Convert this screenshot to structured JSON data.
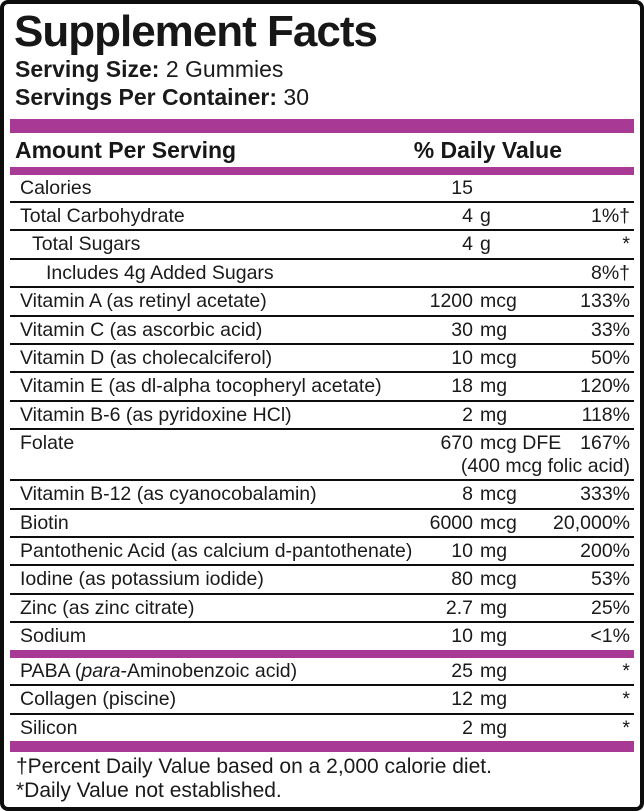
{
  "title": "Supplement Facts",
  "serving_size": {
    "label": "Serving Size:",
    "value": "2 Gummies"
  },
  "servings_per_container": {
    "label": "Servings Per Container:",
    "value": "30"
  },
  "columns": {
    "amount": "Amount Per Serving",
    "daily_value": "% Daily Value"
  },
  "colors": {
    "accent_bar": "#A83994",
    "border": "#0D0D0D",
    "text": "#1A1A1A"
  },
  "sections": [
    {
      "rows": [
        {
          "name": "Calories",
          "amount": "15",
          "unit": "",
          "dv": "",
          "indent": 0
        },
        {
          "name": "Total Carbohydrate",
          "amount": "4",
          "unit": "g",
          "dv": "1%†",
          "indent": 0
        },
        {
          "name": "Total Sugars",
          "amount": "4",
          "unit": "g",
          "dv": "*",
          "indent": 1
        },
        {
          "name": "Includes 4g Added Sugars",
          "amount": "",
          "unit": "",
          "dv": "8%†",
          "indent": 2
        },
        {
          "name": "Vitamin A (as retinyl acetate)",
          "amount": "1200",
          "unit": "mcg",
          "dv": "133%",
          "indent": 0
        },
        {
          "name": "Vitamin C (as ascorbic acid)",
          "amount": "30",
          "unit": "mg",
          "dv": "33%",
          "indent": 0
        },
        {
          "name": "Vitamin D (as cholecalciferol)",
          "amount": "10",
          "unit": "mcg",
          "dv": "50%",
          "indent": 0
        },
        {
          "name": "Vitamin E (as dl-alpha tocopheryl acetate)",
          "amount": "18",
          "unit": "mg",
          "dv": "120%",
          "indent": 0
        },
        {
          "name": "Vitamin B-6 (as pyridoxine HCl)",
          "amount": "2",
          "unit": "mg",
          "dv": "118%",
          "indent": 0
        },
        {
          "name": "Folate",
          "amount": "670",
          "unit": "mcg DFE",
          "dv": "167%",
          "subline": "(400 mcg folic acid)",
          "indent": 0
        },
        {
          "name": "Vitamin B-12 (as cyanocobalamin)",
          "amount": "8",
          "unit": "mcg",
          "dv": "333%",
          "indent": 0
        },
        {
          "name": "Biotin",
          "amount": "6000",
          "unit": "mcg",
          "dv": "20,000%",
          "indent": 0
        },
        {
          "name": "Pantothenic Acid (as calcium d-pantothenate)",
          "amount": "10",
          "unit": "mg",
          "dv": "200%",
          "indent": 0
        },
        {
          "name": "Iodine (as potassium iodide)",
          "amount": "80",
          "unit": "mcg",
          "dv": "53%",
          "indent": 0
        },
        {
          "name": "Zinc (as zinc citrate)",
          "amount": "2.7",
          "unit": "mg",
          "dv": "25%",
          "indent": 0
        },
        {
          "name": "Sodium",
          "amount": "10",
          "unit": "mg",
          "dv": "<1%",
          "indent": 0
        }
      ]
    },
    {
      "rows": [
        {
          "name_parts": [
            {
              "text": "PABA (",
              "italic": false
            },
            {
              "text": "para",
              "italic": true
            },
            {
              "text": "-Aminobenzoic acid)",
              "italic": false
            }
          ],
          "name": "PABA (para-Aminobenzoic acid)",
          "amount": "25",
          "unit": "mg",
          "dv": "*",
          "indent": 0
        },
        {
          "name": "Collagen (piscine)",
          "amount": "12",
          "unit": "mg",
          "dv": "*",
          "indent": 0
        },
        {
          "name": "Silicon",
          "amount": "2",
          "unit": "mg",
          "dv": "*",
          "indent": 0
        }
      ]
    }
  ],
  "footnotes": [
    "†Percent Daily Value based on a 2,000 calorie diet.",
    "*Daily Value not established."
  ]
}
